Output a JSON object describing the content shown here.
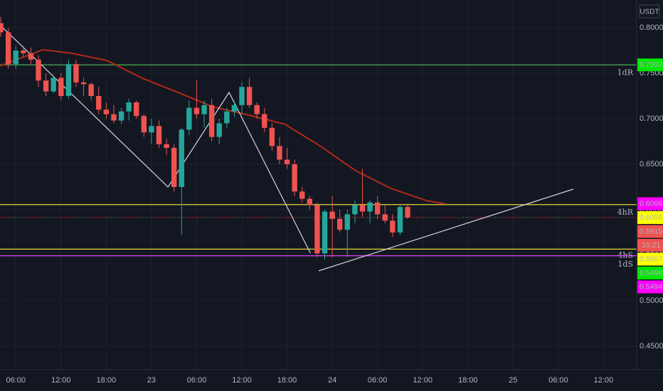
{
  "chart_data": {
    "type": "candlestick",
    "currency": "USDT",
    "x": [
      4,
      5,
      6,
      7,
      8,
      9,
      10,
      11,
      12,
      13,
      14,
      15,
      16,
      17,
      18,
      19,
      20,
      21,
      22,
      23,
      24,
      25,
      26,
      27,
      28,
      29,
      30,
      31,
      32,
      33,
      34,
      35,
      36,
      37,
      38,
      39,
      40,
      41,
      42,
      43,
      44,
      45,
      46,
      47,
      48,
      49,
      50,
      51,
      52,
      53,
      54,
      55,
      56,
      57,
      58
    ],
    "open": [
      0.805,
      0.795,
      0.76,
      0.775,
      0.772,
      0.765,
      0.742,
      0.73,
      0.745,
      0.725,
      0.76,
      0.74,
      0.738,
      0.725,
      0.71,
      0.705,
      0.698,
      0.708,
      0.718,
      0.703,
      0.685,
      0.692,
      0.672,
      0.668,
      0.625,
      0.688,
      0.712,
      0.705,
      0.715,
      0.68,
      0.695,
      0.708,
      0.715,
      0.735,
      0.715,
      0.705,
      0.69,
      0.67,
      0.655,
      0.65,
      0.62,
      0.612,
      0.605,
      0.552,
      0.598,
      0.59,
      0.578,
      0.595,
      0.605,
      0.598,
      0.608,
      0.595,
      0.588,
      0.575,
      0.603
    ],
    "high": [
      0.812,
      0.8,
      0.78,
      0.78,
      0.778,
      0.77,
      0.75,
      0.748,
      0.75,
      0.765,
      0.765,
      0.745,
      0.74,
      0.735,
      0.718,
      0.715,
      0.712,
      0.722,
      0.72,
      0.705,
      0.7,
      0.698,
      0.678,
      0.672,
      0.69,
      0.72,
      0.742,
      0.72,
      0.722,
      0.7,
      0.712,
      0.72,
      0.74,
      0.745,
      0.718,
      0.712,
      0.695,
      0.68,
      0.668,
      0.655,
      0.625,
      0.615,
      0.608,
      0.6,
      0.615,
      0.6,
      0.6,
      0.61,
      0.645,
      0.61,
      0.615,
      0.605,
      0.595,
      0.605,
      0.607
    ],
    "low": [
      0.79,
      0.755,
      0.755,
      0.768,
      0.76,
      0.735,
      0.725,
      0.728,
      0.72,
      0.722,
      0.735,
      0.725,
      0.72,
      0.705,
      0.7,
      0.695,
      0.694,
      0.698,
      0.7,
      0.68,
      0.672,
      0.668,
      0.66,
      0.62,
      0.572,
      0.682,
      0.7,
      0.69,
      0.675,
      0.672,
      0.69,
      0.702,
      0.705,
      0.712,
      0.7,
      0.685,
      0.665,
      0.65,
      0.645,
      0.615,
      0.608,
      0.6,
      0.548,
      0.545,
      0.548,
      0.575,
      0.548,
      0.585,
      0.592,
      0.585,
      0.59,
      0.585,
      0.57,
      0.572,
      0.59
    ],
    "close": [
      0.795,
      0.76,
      0.775,
      0.772,
      0.765,
      0.742,
      0.73,
      0.745,
      0.725,
      0.76,
      0.74,
      0.738,
      0.725,
      0.71,
      0.705,
      0.698,
      0.708,
      0.718,
      0.703,
      0.685,
      0.692,
      0.672,
      0.668,
      0.625,
      0.688,
      0.712,
      0.705,
      0.715,
      0.68,
      0.695,
      0.708,
      0.715,
      0.735,
      0.715,
      0.705,
      0.69,
      0.67,
      0.655,
      0.65,
      0.62,
      0.612,
      0.605,
      0.552,
      0.598,
      0.59,
      0.578,
      0.595,
      0.605,
      0.598,
      0.608,
      0.595,
      0.588,
      0.575,
      0.603,
      0.5915
    ],
    "up_color": "#26a69a",
    "down_color": "#ef5350",
    "moving_average": {
      "color": "#b02a16",
      "x": [
        3.9,
        9.6,
        13.4,
        18.1,
        22.8,
        27.5,
        32.2,
        36.9,
        41.7,
        46.4,
        51.1,
        55.8,
        60.5,
        63.1
      ],
      "values": [
        0.758,
        0.7758,
        0.772,
        0.764,
        0.7445,
        0.729,
        0.713,
        0.704,
        0.694,
        0.67,
        0.643,
        0.6234,
        0.61,
        0.6063
      ]
    },
    "drawings": [
      {
        "color": "#d1d4dc",
        "x": [
          3.9,
          26.2,
          34.3,
          45.1
        ],
        "values": [
          0.8031,
          0.625,
          0.7289,
          0.5523
        ]
      },
      {
        "color": "#d1d4dc",
        "x": [
          46.2,
          80.0
        ],
        "values": [
          0.5328,
          0.6227
        ]
      }
    ],
    "levels": [
      {
        "name": "1dR",
        "value": 0.7592,
        "color": "#4caf50",
        "text_color": "#26a69a"
      },
      {
        "name": "4hR",
        "value": 0.6056,
        "color": "#ffeb3b",
        "text_color": "#ffeb3b"
      },
      {
        "name": "4hS",
        "value": 0.5567,
        "color": "#ffeb3b",
        "text_color": "#ffeb3b"
      },
      {
        "name": "1dS",
        "value": 0.5494,
        "color": "#e040fb",
        "text_color": "#9c27b0"
      }
    ],
    "price_labels": [
      {
        "value": 0.7592,
        "color": "#00e600"
      },
      {
        "value": 0.6066,
        "color": "#ff00ff"
      },
      {
        "value": 0.6056,
        "color": "#ffff00"
      },
      {
        "value": 0.5915,
        "color": "#ef5350"
      },
      {
        "value": 0.5567,
        "color": "#ffff00"
      },
      {
        "value": 0.5498,
        "color": "#00e600"
      },
      {
        "value": 0.5494,
        "color": "#ff00ff"
      }
    ],
    "countdown": "10:21",
    "ylim": [
      0.4242,
      0.8305
    ],
    "yticks": [
      {
        "value": 0.8,
        "label": "0.8000"
      },
      {
        "value": 0.75,
        "label": "0.7500"
      },
      {
        "value": 0.7,
        "label": "0.7000"
      },
      {
        "value": 0.65,
        "label": "0.6500"
      },
      {
        "value": 0.6,
        "label": "0.6000"
      },
      {
        "value": 0.55,
        "label": "0.5500"
      },
      {
        "value": 0.5,
        "label": "0.5000"
      },
      {
        "value": 0.45,
        "label": "0.4500"
      }
    ],
    "xlim": [
      3.9,
      88.4
    ],
    "xticks": [
      {
        "value": 6,
        "label": "06:00"
      },
      {
        "value": 12,
        "label": "12:00"
      },
      {
        "value": 18,
        "label": "18:00"
      },
      {
        "value": 24,
        "label": "23"
      },
      {
        "value": 30,
        "label": "06:00"
      },
      {
        "value": 36,
        "label": "12:00"
      },
      {
        "value": 42,
        "label": "18:00"
      },
      {
        "value": 48,
        "label": "24"
      },
      {
        "value": 54,
        "label": "06:00"
      },
      {
        "value": 60,
        "label": "12:00"
      },
      {
        "value": 66,
        "label": "18:00"
      },
      {
        "value": 72,
        "label": "25"
      },
      {
        "value": 78,
        "label": "06:00"
      },
      {
        "value": 84,
        "label": "12:00"
      }
    ],
    "grid": true
  }
}
